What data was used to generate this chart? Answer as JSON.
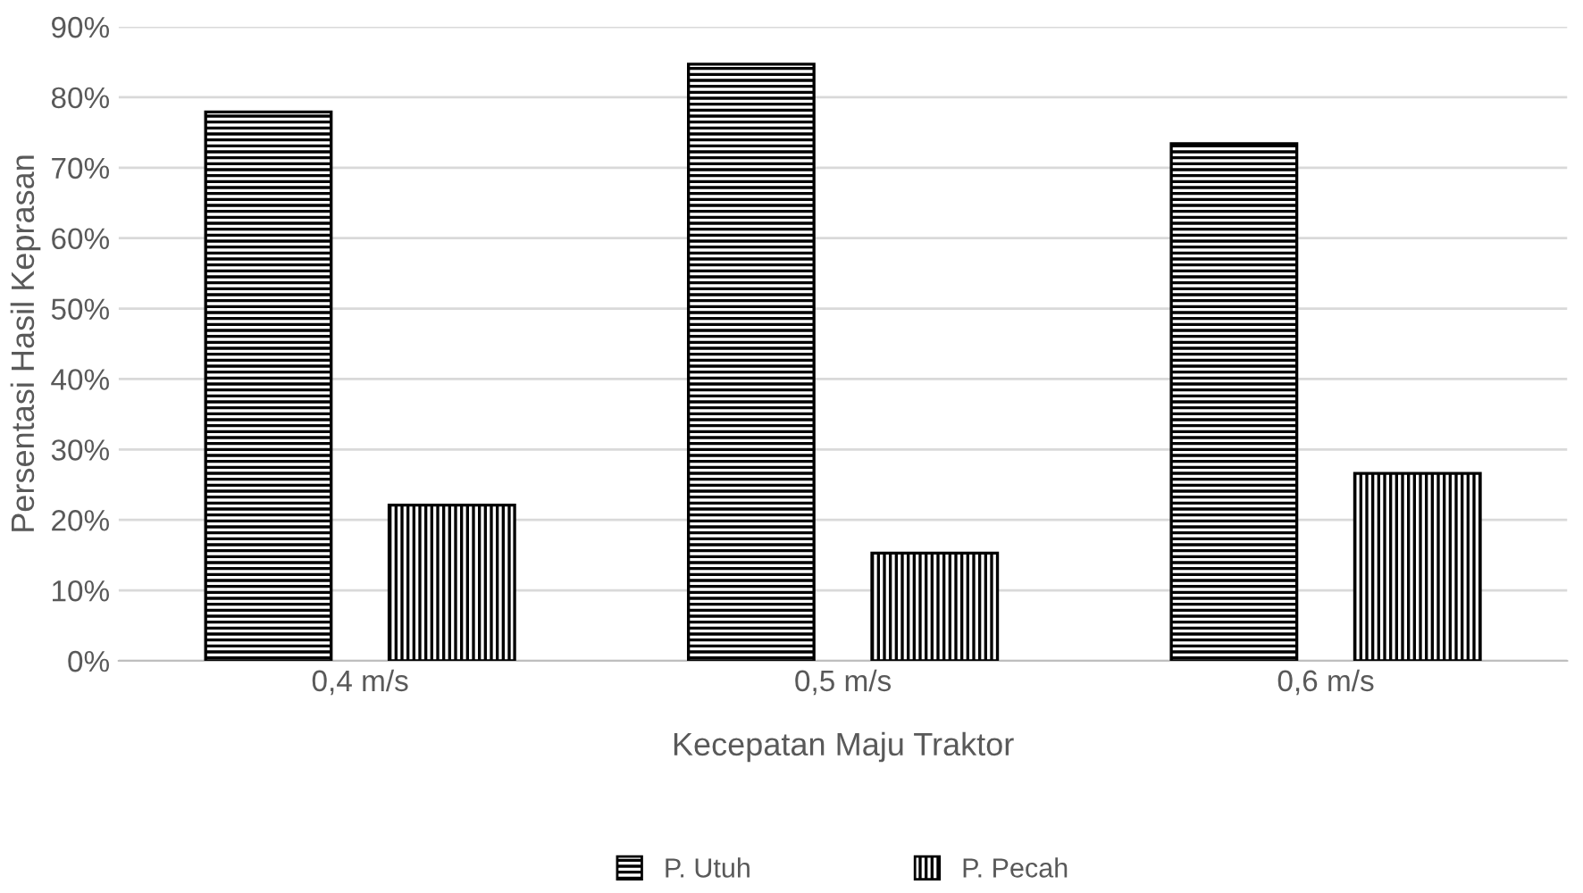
{
  "chart_data": {
    "type": "bar",
    "xlabel": "Kecepatan Maju Traktor",
    "ylabel": "Persentasi Hasil Keprasan",
    "categories": [
      "0,4 m/s",
      "0,5 m/s",
      "0,6 m/s"
    ],
    "series": [
      {
        "name": "P. Utuh",
        "color": "#000000",
        "values": [
          77.9,
          84.7,
          73.4
        ]
      },
      {
        "name": "P. Pecah",
        "color": "#000000",
        "values": [
          22.1,
          15.3,
          26.6
        ]
      }
    ],
    "ylim": [
      0,
      90
    ],
    "yticks": [
      {
        "value": 0,
        "label": "0%"
      },
      {
        "value": 10,
        "label": "10%"
      },
      {
        "value": 20,
        "label": "20%"
      },
      {
        "value": 30,
        "label": "30%"
      },
      {
        "value": 40,
        "label": "40%"
      },
      {
        "value": 50,
        "label": "50%"
      },
      {
        "value": 60,
        "label": "60%"
      },
      {
        "value": 70,
        "label": "70%"
      },
      {
        "value": 80,
        "label": "80%"
      },
      {
        "value": 90,
        "label": "90%"
      }
    ],
    "grid": "y",
    "legend": "bottom"
  }
}
